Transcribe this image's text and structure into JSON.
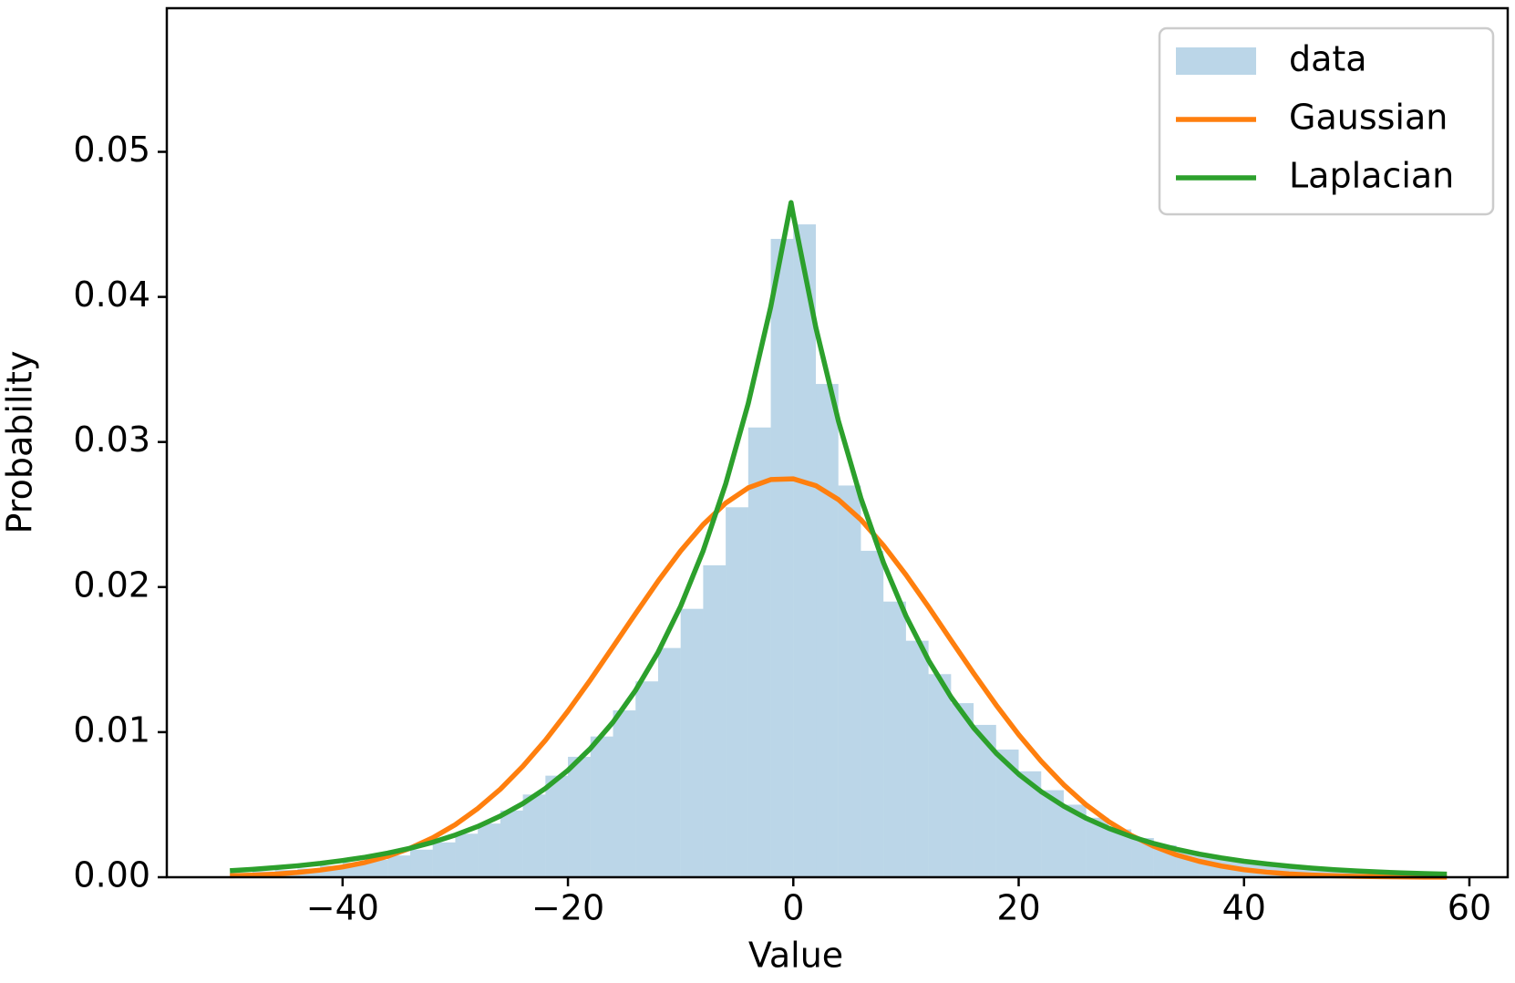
{
  "chart_data": {
    "type": "histogram",
    "xlabel": "Value",
    "ylabel": "Probability",
    "xlim": [
      -55.6,
      63.4
    ],
    "ylim": [
      0,
      0.0599
    ],
    "xticks": [
      {
        "value": -40,
        "label": "−40"
      },
      {
        "value": -20,
        "label": "−20"
      },
      0,
      20,
      40,
      60
    ],
    "yticks": [
      {
        "value": 0,
        "label": "0.00"
      },
      0.01,
      0.02,
      0.03,
      0.04,
      0.05
    ],
    "legend": "upper right",
    "name": "data",
    "color": "#1f77b4",
    "alpha": 0.3,
    "bins": [
      -50,
      -48,
      -46,
      -44,
      -42,
      -40,
      -38,
      -36,
      -34,
      -32,
      -30,
      -28,
      -26,
      -24,
      -22,
      -20,
      -18,
      -16,
      -14,
      -12,
      -10,
      -8,
      -6,
      -4,
      -2,
      0,
      2,
      4,
      6,
      8,
      10,
      12,
      14,
      16,
      18,
      20,
      22,
      24,
      26,
      28,
      30,
      32,
      34,
      36,
      38,
      40,
      42,
      44,
      46,
      48,
      50,
      52,
      54,
      56,
      58
    ],
    "values": [
      0.0003,
      0.0004,
      0.0005,
      0.0006,
      0.0008,
      0.001,
      0.0012,
      0.0015,
      0.0019,
      0.0024,
      0.003,
      0.0037,
      0.0046,
      0.0057,
      0.007,
      0.0083,
      0.0097,
      0.0115,
      0.0135,
      0.0158,
      0.0185,
      0.0215,
      0.0255,
      0.031,
      0.044,
      0.045,
      0.034,
      0.027,
      0.0225,
      0.019,
      0.0163,
      0.014,
      0.012,
      0.0105,
      0.0088,
      0.0073,
      0.006,
      0.005,
      0.0041,
      0.0033,
      0.0027,
      0.0022,
      0.0018,
      0.0015,
      0.0012,
      0.001,
      0.0008,
      0.0006,
      0.0005,
      0.0004,
      0.0003,
      0.0003,
      0.0002,
      0.0002
    ],
    "lines": [
      {
        "name": "Gaussian",
        "color": "#ff7f0e",
        "x": [
          -50,
          -48,
          -46,
          -44,
          -42,
          -40,
          -38,
          -36,
          -34,
          -32,
          -30,
          -28,
          -26,
          -24,
          -22,
          -20,
          -18,
          -16,
          -14,
          -12,
          -10,
          -8,
          -6,
          -4,
          -2,
          0,
          2,
          4,
          6,
          8,
          10,
          12,
          14,
          16,
          18,
          20,
          22,
          24,
          26,
          28,
          30,
          32,
          34,
          36,
          38,
          40,
          42,
          44,
          46,
          48,
          50,
          52,
          54,
          56,
          58
        ],
        "values": [
          0.0001,
          0.00014,
          0.00021,
          0.00033,
          0.00049,
          0.00071,
          0.00102,
          0.00144,
          0.002,
          0.00272,
          0.00362,
          0.00474,
          0.00607,
          0.00765,
          0.00944,
          0.01145,
          0.01361,
          0.01588,
          0.01817,
          0.02041,
          0.02249,
          0.02431,
          0.02579,
          0.02684,
          0.02741,
          0.02746,
          0.02699,
          0.02603,
          0.02464,
          0.02287,
          0.02084,
          0.01863,
          0.01633,
          0.01406,
          0.01187,
          0.00983,
          0.00799,
          0.00637,
          0.00498,
          0.00383,
          0.00288,
          0.00213,
          0.00154,
          0.0011,
          0.00077,
          0.00052,
          0.00035,
          0.00023,
          0.00015,
          0.0001,
          6e-05,
          4e-05,
          2e-05,
          1e-05,
          1e-05
        ]
      },
      {
        "name": "Laplacian",
        "color": "#2ca02c",
        "x": [
          -50,
          -48,
          -46,
          -44,
          -42,
          -40,
          -38,
          -36,
          -34,
          -32,
          -30,
          -28,
          -26,
          -24,
          -22,
          -20,
          -18,
          -16,
          -14,
          -12,
          -10,
          -8,
          -6,
          -4,
          -2,
          -0.2,
          0,
          2,
          4,
          6,
          8,
          10,
          12,
          14,
          16,
          18,
          20,
          22,
          24,
          26,
          28,
          30,
          32,
          34,
          36,
          38,
          40,
          42,
          44,
          46,
          48,
          50,
          52,
          54,
          56,
          58
        ],
        "values": [
          0.00045,
          0.00054,
          0.00066,
          0.00079,
          0.00095,
          0.00115,
          0.00138,
          0.00166,
          0.002,
          0.00241,
          0.00291,
          0.0035,
          0.00422,
          0.00508,
          0.00612,
          0.00737,
          0.00888,
          0.01069,
          0.01288,
          0.01551,
          0.01868,
          0.0225,
          0.02711,
          0.03265,
          0.03933,
          0.0465,
          0.04564,
          0.03789,
          0.03146,
          0.02612,
          0.02168,
          0.018,
          0.01495,
          0.01241,
          0.0103,
          0.00855,
          0.0071,
          0.0059,
          0.0049,
          0.00406,
          0.00337,
          0.0028,
          0.00232,
          0.00193,
          0.0016,
          0.00133,
          0.0011,
          0.00092,
          0.00076,
          0.00063,
          0.00052,
          0.00043,
          0.00036,
          0.0003,
          0.00025,
          0.00021
        ]
      }
    ]
  }
}
